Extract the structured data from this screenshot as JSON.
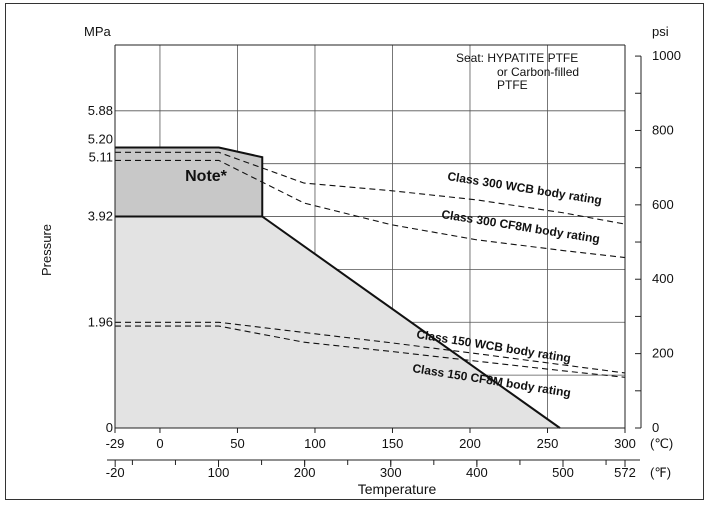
{
  "chart_data": {
    "type": "line",
    "title": "",
    "xlabel": "Temperature",
    "ylabel": "Pressure",
    "left_axis_unit": "MPa",
    "right_axis_unit": "psi",
    "x_unit_celsius": "(℃)",
    "x_unit_fahrenheit": "(℉)",
    "x_ticks_celsius": [
      "-29",
      "0",
      "50",
      "100",
      "150",
      "200",
      "250",
      "300"
    ],
    "x_ticks_fahrenheit": [
      "-20",
      "100",
      "200",
      "300",
      "400",
      "500",
      "572"
    ],
    "y_ticks_mpa": [
      "0",
      "1.96",
      "3.92",
      "5.11",
      "5.20",
      "5.88"
    ],
    "y_ticks_psi": [
      "0",
      "200",
      "400",
      "600",
      "800",
      "1000"
    ],
    "xlim_celsius": [
      -29,
      300
    ],
    "ylim_mpa": [
      0,
      7.1
    ],
    "grid": true,
    "seat_note": [
      "Seat:  HYPATITE PTFE",
      "or Carbon-filled",
      "PTFE"
    ],
    "note_label": "Note*",
    "series": [
      {
        "name": "Class 300 WCB body rating",
        "style": "dashed",
        "x": [
          -29,
          38,
          93,
          149,
          204,
          260,
          300
        ],
        "y": [
          5.11,
          5.11,
          4.54,
          4.4,
          4.23,
          3.99,
          3.78
        ]
      },
      {
        "name": "Class 300 CF8M body rating",
        "style": "dashed",
        "x": [
          -29,
          38,
          93,
          149,
          204,
          260,
          300
        ],
        "y": [
          4.96,
          4.96,
          4.17,
          3.77,
          3.49,
          3.29,
          3.16
        ]
      },
      {
        "name": "Class 150 WCB body rating",
        "style": "dashed",
        "x": [
          -29,
          38,
          93,
          149,
          204,
          260,
          300
        ],
        "y": [
          1.96,
          1.96,
          1.77,
          1.58,
          1.38,
          1.17,
          1.02
        ]
      },
      {
        "name": "Class 150 CF8M body rating",
        "style": "dashed",
        "x": [
          -29,
          38,
          93,
          149,
          204,
          260,
          300
        ],
        "y": [
          1.89,
          1.89,
          1.59,
          1.42,
          1.24,
          1.06,
          0.94
        ]
      }
    ],
    "seat_rating": {
      "outer_boundary": {
        "x": [
          -29,
          38,
          66,
          66,
          258
        ],
        "y": [
          5.2,
          5.2,
          5.02,
          3.92,
          0
        ]
      },
      "note_region": {
        "x": [
          -29,
          38,
          66,
          66,
          -29
        ],
        "y": [
          5.2,
          5.2,
          5.02,
          3.92,
          3.92
        ]
      }
    },
    "colors": {
      "fill_main": "#e3e3e3",
      "fill_note": "#c8c8c8",
      "line": "#111111",
      "grid": "#555555"
    }
  }
}
